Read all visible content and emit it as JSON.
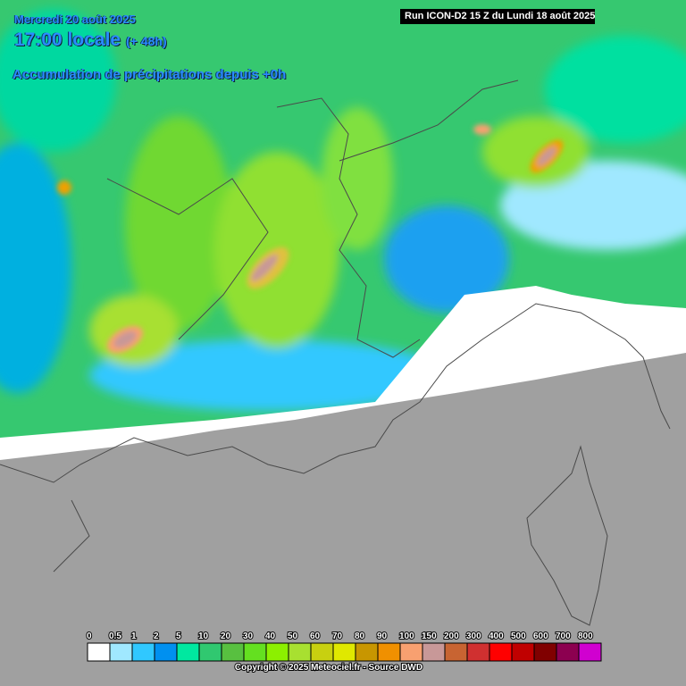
{
  "header": {
    "date": "Mercredi 20 août 2025",
    "time": "17:00 locale",
    "lead": "(+ 48h)",
    "subtitle": "Accumulation de précipitations depuis +0h",
    "run": "Run ICON-D2 15 Z du Lundi 18 août 2025"
  },
  "legend": [
    {
      "label": "0",
      "color": "#ffffff"
    },
    {
      "label": "0.5",
      "color": "#a0e8ff"
    },
    {
      "label": "1",
      "color": "#30c8ff"
    },
    {
      "label": "2",
      "color": "#0090f0"
    },
    {
      "label": "5",
      "color": "#00e8a0"
    },
    {
      "label": "10",
      "color": "#30c870"
    },
    {
      "label": "20",
      "color": "#58c040"
    },
    {
      "label": "30",
      "color": "#64e020"
    },
    {
      "label": "40",
      "color": "#8cf000"
    },
    {
      "label": "50",
      "color": "#a8e030"
    },
    {
      "label": "60",
      "color": "#c8d010"
    },
    {
      "label": "70",
      "color": "#e0e800"
    },
    {
      "label": "80",
      "color": "#c89600"
    },
    {
      "label": "90",
      "color": "#f09000"
    },
    {
      "label": "100",
      "color": "#f8a070"
    },
    {
      "label": "150",
      "color": "#c89898"
    },
    {
      "label": "200",
      "color": "#c86432"
    },
    {
      "label": "300",
      "color": "#d03030"
    },
    {
      "label": "400",
      "color": "#ff0000"
    },
    {
      "label": "500",
      "color": "#c00000"
    },
    {
      "label": "600",
      "color": "#800000"
    },
    {
      "label": "700",
      "color": "#8c0050"
    },
    {
      "label": "800",
      "color": "#d000d0"
    }
  ],
  "copyright": "Copyright © 2025 Meteociel.fr - Source DWD"
}
